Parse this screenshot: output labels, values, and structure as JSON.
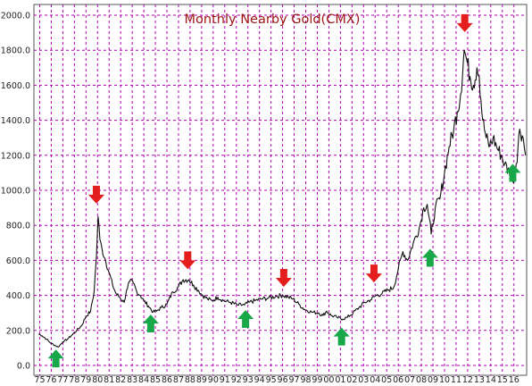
{
  "colors": {
    "grid": "#b000b0",
    "line": "#111111",
    "title": "#9a1616",
    "up_arrow": "#18a84a",
    "down_arrow": "#e41d1d",
    "frame": "#555555"
  },
  "chart_data": {
    "type": "line",
    "title": "Monthly Nearby Gold(CMX)",
    "ylim": [
      0,
      2000
    ],
    "xlim": [
      1974.5,
      2017.1
    ],
    "y_ticks": [
      0,
      200,
      400,
      600,
      800,
      1000,
      1200,
      1400,
      1600,
      1800,
      2000
    ],
    "y_tick_labels": [
      "0.0",
      "200.0",
      "400.0",
      "600.0",
      "800.0",
      "1000.0",
      "1200.0",
      "1400.0",
      "1600.0",
      "1800.0",
      "2000.0"
    ],
    "x_tick_labels": [
      "75",
      "76",
      "77",
      "78",
      "79",
      "80",
      "81",
      "82",
      "83",
      "84",
      "85",
      "86",
      "87",
      "88",
      "89",
      "90",
      "91",
      "92",
      "93",
      "94",
      "95",
      "96",
      "97",
      "98",
      "99",
      "00",
      "01",
      "02",
      "03",
      "04",
      "05",
      "06",
      "07",
      "08",
      "09",
      "10",
      "11",
      "12",
      "13",
      "14",
      "15",
      "16"
    ],
    "grid": true,
    "series": [
      {
        "x": [
          1974.9,
          1975.2,
          1975.6,
          1975.9,
          1976.3,
          1976.6,
          1977.0,
          1977.4,
          1977.8,
          1978.2,
          1978.6,
          1979.0,
          1979.4,
          1979.7,
          1979.9,
          1980.05,
          1980.2,
          1980.4,
          1980.7,
          1981.0,
          1981.3,
          1981.6,
          1981.9,
          1982.3,
          1982.5,
          1982.8,
          1983.1,
          1983.4,
          1983.7,
          1984.0,
          1984.4,
          1984.8,
          1985.1,
          1985.5,
          1986.0,
          1986.5,
          1987.0,
          1987.4,
          1987.9,
          1988.3,
          1988.7,
          1989.1,
          1989.5,
          1989.9,
          1990.4,
          1990.9,
          1991.5,
          1992.1,
          1992.7,
          1993.1,
          1993.6,
          1994.2,
          1994.8,
          1995.4,
          1996.0,
          1996.5,
          1996.9,
          1997.4,
          1997.9,
          1998.5,
          1999.1,
          1999.5,
          1999.8,
          2000.2,
          2000.7,
          2001.2,
          2001.6,
          2002.1,
          2002.6,
          2003.1,
          2003.6,
          2004.1,
          2004.6,
          2005.1,
          2005.6,
          2006.0,
          2006.4,
          2006.8,
          2007.3,
          2007.8,
          2008.2,
          2008.5,
          2008.85,
          2009.2,
          2009.6,
          2010.0,
          2010.4,
          2010.8,
          2011.1,
          2011.4,
          2011.7,
          2011.9,
          2012.2,
          2012.5,
          2012.8,
          2013.0,
          2013.3,
          2013.6,
          2013.9,
          2014.2,
          2014.5,
          2014.9,
          2015.2,
          2015.6,
          2015.9,
          2016.2,
          2016.5,
          2016.8,
          2017.0
        ],
        "y": [
          180,
          170,
          150,
          130,
          115,
          105,
          135,
          150,
          175,
          200,
          225,
          280,
          310,
          420,
          620,
          850,
          720,
          660,
          600,
          530,
          460,
          410,
          390,
          360,
          430,
          480,
          470,
          420,
          400,
          370,
          340,
          305,
          310,
          330,
          350,
          420,
          450,
          490,
          490,
          460,
          430,
          400,
          380,
          370,
          390,
          370,
          360,
          345,
          345,
          360,
          370,
          380,
          385,
          395,
          400,
          390,
          380,
          350,
          320,
          305,
          300,
          285,
          310,
          285,
          275,
          265,
          275,
          300,
          330,
          360,
          375,
          400,
          410,
          430,
          445,
          550,
          650,
          600,
          700,
          780,
          900,
          920,
          750,
          900,
          950,
          1100,
          1250,
          1350,
          1450,
          1550,
          1800,
          1750,
          1650,
          1600,
          1700,
          1650,
          1400,
          1300,
          1250,
          1300,
          1250,
          1200,
          1150,
          1100,
          1050,
          1150,
          1350,
          1300,
          1200
        ]
      }
    ],
    "up_arrows": [
      [
        1976.4,
        40
      ],
      [
        1984.6,
        240
      ],
      [
        1992.8,
        265
      ],
      [
        2001.1,
        165
      ],
      [
        2008.75,
        615
      ],
      [
        2015.9,
        1100
      ]
    ],
    "down_arrows": [
      [
        1979.9,
        975
      ],
      [
        1987.8,
        600
      ],
      [
        1996.1,
        500
      ],
      [
        2003.9,
        525
      ],
      [
        2011.75,
        1955
      ]
    ]
  }
}
